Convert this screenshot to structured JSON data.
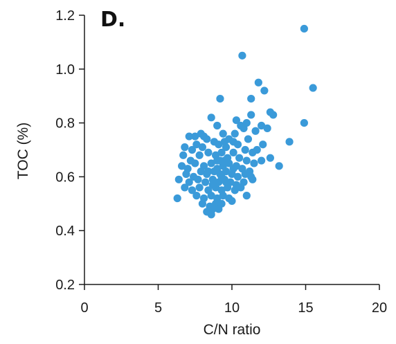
{
  "panel_label": "D.",
  "chart_data": {
    "type": "scatter",
    "title": "",
    "xlabel": "C/N ratio",
    "ylabel": "TOC (%)",
    "xlim": [
      0,
      20
    ],
    "ylim": [
      0.2,
      1.2
    ],
    "x_ticks": [
      0,
      5,
      10,
      15,
      20
    ],
    "y_ticks": [
      0.2,
      0.4,
      0.6,
      0.8,
      1.0,
      1.2
    ],
    "x_tick_labels": [
      "0",
      "5",
      "10",
      "15",
      "20"
    ],
    "y_tick_labels": [
      "0.2",
      "0.4",
      "0.6",
      "0.8",
      "1.0",
      "1.2"
    ],
    "grid": false,
    "marker_color": "#3a9ad9",
    "points": [
      [
        14.9,
        1.15
      ],
      [
        10.7,
        1.05
      ],
      [
        15.5,
        0.93
      ],
      [
        11.8,
        0.95
      ],
      [
        12.2,
        0.92
      ],
      [
        9.2,
        0.89
      ],
      [
        11.3,
        0.89
      ],
      [
        12.6,
        0.84
      ],
      [
        12.8,
        0.83
      ],
      [
        11.3,
        0.83
      ],
      [
        8.6,
        0.82
      ],
      [
        14.9,
        0.8
      ],
      [
        10.3,
        0.81
      ],
      [
        10.6,
        0.79
      ],
      [
        11.0,
        0.8
      ],
      [
        12.0,
        0.79
      ],
      [
        12.4,
        0.78
      ],
      [
        11.6,
        0.77
      ],
      [
        9.0,
        0.79
      ],
      [
        10.8,
        0.78
      ],
      [
        13.9,
        0.73
      ],
      [
        7.9,
        0.76
      ],
      [
        7.1,
        0.75
      ],
      [
        8.3,
        0.74
      ],
      [
        9.4,
        0.76
      ],
      [
        9.8,
        0.74
      ],
      [
        10.2,
        0.76
      ],
      [
        11.1,
        0.74
      ],
      [
        12.1,
        0.72
      ],
      [
        11.7,
        0.7
      ],
      [
        6.8,
        0.71
      ],
      [
        7.3,
        0.7
      ],
      [
        7.6,
        0.72
      ],
      [
        8.0,
        0.71
      ],
      [
        8.8,
        0.73
      ],
      [
        9.1,
        0.72
      ],
      [
        9.6,
        0.71
      ],
      [
        10.4,
        0.72
      ],
      [
        10.9,
        0.7
      ],
      [
        11.4,
        0.69
      ],
      [
        12.6,
        0.67
      ],
      [
        13.2,
        0.64
      ],
      [
        12.0,
        0.66
      ],
      [
        11.5,
        0.65
      ],
      [
        6.7,
        0.68
      ],
      [
        7.2,
        0.66
      ],
      [
        7.8,
        0.68
      ],
      [
        8.4,
        0.69
      ],
      [
        8.9,
        0.68
      ],
      [
        9.3,
        0.69
      ],
      [
        9.7,
        0.67
      ],
      [
        10.1,
        0.69
      ],
      [
        10.5,
        0.67
      ],
      [
        11.0,
        0.66
      ],
      [
        6.6,
        0.64
      ],
      [
        7.0,
        0.63
      ],
      [
        7.5,
        0.65
      ],
      [
        8.1,
        0.64
      ],
      [
        8.6,
        0.65
      ],
      [
        9.0,
        0.66
      ],
      [
        9.4,
        0.64
      ],
      [
        9.8,
        0.65
      ],
      [
        10.3,
        0.64
      ],
      [
        10.7,
        0.63
      ],
      [
        11.2,
        0.62
      ],
      [
        6.9,
        0.61
      ],
      [
        7.4,
        0.6
      ],
      [
        7.9,
        0.62
      ],
      [
        8.3,
        0.61
      ],
      [
        8.8,
        0.62
      ],
      [
        9.2,
        0.61
      ],
      [
        9.6,
        0.62
      ],
      [
        10.0,
        0.61
      ],
      [
        10.4,
        0.6
      ],
      [
        10.9,
        0.61
      ],
      [
        11.3,
        0.6
      ],
      [
        6.4,
        0.59
      ],
      [
        7.1,
        0.58
      ],
      [
        7.7,
        0.59
      ],
      [
        8.2,
        0.58
      ],
      [
        8.7,
        0.59
      ],
      [
        9.1,
        0.58
      ],
      [
        9.5,
        0.59
      ],
      [
        9.9,
        0.58
      ],
      [
        10.3,
        0.57
      ],
      [
        10.8,
        0.58
      ],
      [
        11.4,
        0.59
      ],
      [
        6.8,
        0.56
      ],
      [
        7.3,
        0.55
      ],
      [
        7.8,
        0.56
      ],
      [
        8.4,
        0.55
      ],
      [
        8.9,
        0.56
      ],
      [
        9.3,
        0.55
      ],
      [
        9.7,
        0.56
      ],
      [
        10.2,
        0.55
      ],
      [
        10.6,
        0.56
      ],
      [
        7.6,
        0.53
      ],
      [
        8.1,
        0.52
      ],
      [
        8.6,
        0.53
      ],
      [
        9.0,
        0.52
      ],
      [
        9.4,
        0.53
      ],
      [
        9.8,
        0.52
      ],
      [
        11.0,
        0.53
      ],
      [
        6.3,
        0.52
      ],
      [
        8.0,
        0.5
      ],
      [
        8.5,
        0.49
      ],
      [
        8.9,
        0.5
      ],
      [
        9.3,
        0.5
      ],
      [
        10.0,
        0.51
      ],
      [
        8.3,
        0.47
      ],
      [
        8.7,
        0.48
      ],
      [
        9.1,
        0.48
      ],
      [
        8.6,
        0.46
      ],
      [
        7.5,
        0.75
      ],
      [
        8.1,
        0.75
      ],
      [
        9.5,
        0.73
      ],
      [
        10.1,
        0.73
      ],
      [
        9.2,
        0.66
      ],
      [
        9.5,
        0.66
      ],
      [
        8.4,
        0.62
      ],
      [
        9.0,
        0.63
      ],
      [
        8.7,
        0.57
      ],
      [
        9.6,
        0.58
      ],
      [
        10.1,
        0.63
      ],
      [
        9.3,
        0.6
      ]
    ]
  }
}
